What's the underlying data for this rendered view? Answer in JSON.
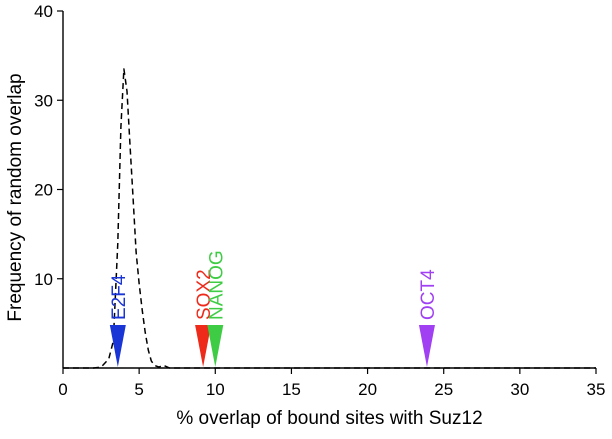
{
  "chart_data": {
    "type": "line",
    "xlabel": "% overlap of bound sites with Suz12",
    "ylabel": "Frequency of random overlap",
    "xlim": [
      0,
      35
    ],
    "ylim": [
      0,
      40
    ],
    "xticks": [
      0,
      5,
      10,
      15,
      20,
      25,
      30,
      35
    ],
    "yticks": [
      10,
      20,
      30,
      40
    ],
    "grid": false,
    "series": [
      {
        "style": "dashed",
        "color": "#000000",
        "x": [
          0,
          2.0,
          2.5,
          3.0,
          3.3,
          3.6,
          3.8,
          4.0,
          4.2,
          4.4,
          4.6,
          4.8,
          5.0,
          5.2,
          5.4,
          5.6,
          5.8,
          6.0,
          6.3,
          6.6,
          7.0,
          35
        ],
        "y": [
          0,
          0,
          0.1,
          1.0,
          3.0,
          14.0,
          27.0,
          33.5,
          31.0,
          25.0,
          19.0,
          13.0,
          9.5,
          6.5,
          4.0,
          2.0,
          0.8,
          0.3,
          0.1,
          0.3,
          0,
          0
        ]
      }
    ],
    "markers": [
      {
        "label": "E2F4",
        "x": 3.6,
        "color": "#1a35d6"
      },
      {
        "label": "SOX2",
        "x": 9.2,
        "color": "#ee2a1a"
      },
      {
        "label": "NANOG",
        "x": 10.0,
        "color": "#3fcc45"
      },
      {
        "label": "OCT4",
        "x": 23.9,
        "color": "#a040f2"
      }
    ]
  }
}
